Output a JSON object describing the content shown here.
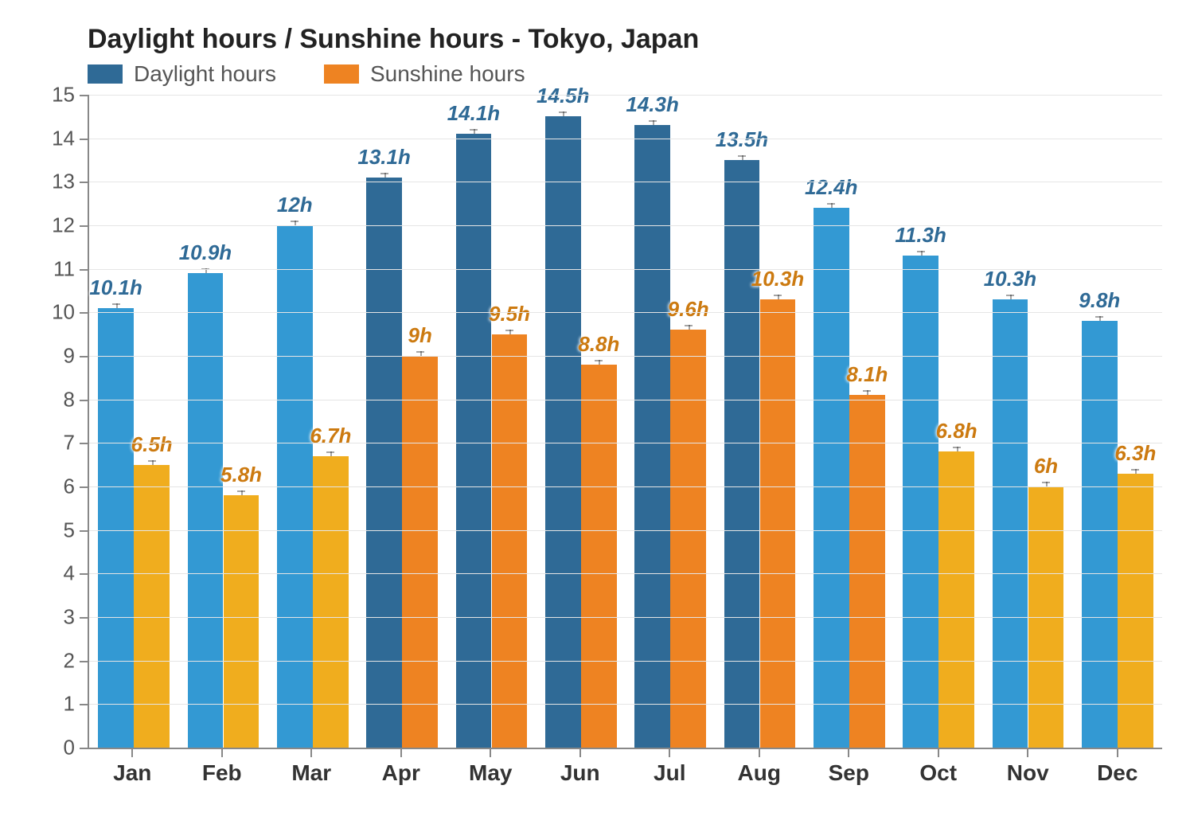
{
  "chart": {
    "type": "bar",
    "title": "Daylight hours / Sunshine hours - Tokyo, Japan",
    "title_fontsize": 34,
    "background_color": "#ffffff",
    "grid_color": "#e5e5e5",
    "axis_color": "#888888",
    "ylim": [
      0,
      15
    ],
    "ytick_step": 1,
    "label_fontsize": 26,
    "value_label_fontsize": 26,
    "xlabel_fontsize": 28,
    "categories": [
      "Jan",
      "Feb",
      "Mar",
      "Apr",
      "May",
      "Jun",
      "Jul",
      "Aug",
      "Sep",
      "Oct",
      "Nov",
      "Dec"
    ],
    "series": [
      {
        "name": "Daylight hours",
        "values": [
          10.1,
          10.9,
          12,
          13.1,
          14.1,
          14.5,
          14.3,
          13.5,
          12.4,
          11.3,
          10.3,
          9.8
        ],
        "labels": [
          "10.1h",
          "10.9h",
          "12h",
          "13.1h",
          "14.1h",
          "14.5h",
          "14.3h",
          "13.5h",
          "12.4h",
          "11.3h",
          "10.3h",
          "9.8h"
        ],
        "colors": [
          "#3399d3",
          "#3399d3",
          "#3399d3",
          "#2f6a96",
          "#2f6a96",
          "#2f6a96",
          "#2f6a96",
          "#2f6a96",
          "#3399d3",
          "#3399d3",
          "#3399d3",
          "#3399d3"
        ],
        "label_color": "#2f6a96",
        "legend_color": "#2f6a96"
      },
      {
        "name": "Sunshine hours",
        "values": [
          6.5,
          5.8,
          6.7,
          9,
          9.5,
          8.8,
          9.6,
          10.3,
          8.1,
          6.8,
          6,
          6.3
        ],
        "labels": [
          "6.5h",
          "5.8h",
          "6.7h",
          "9h",
          "9.5h",
          "8.8h",
          "9.6h",
          "10.3h",
          "8.1h",
          "6.8h",
          "6h",
          "6.3h"
        ],
        "colors": [
          "#f0ad1e",
          "#f0ad1e",
          "#f0ad1e",
          "#ee8322",
          "#ee8322",
          "#ee8322",
          "#ee8322",
          "#ee8322",
          "#ee8322",
          "#f0ad1e",
          "#f0ad1e",
          "#f0ad1e"
        ],
        "label_color": "#cc7a10",
        "legend_color": "#ee8322"
      }
    ],
    "group_width_pct": 7.0,
    "bar_gap_pct": 0.3,
    "group_inner_width_pct": 80
  }
}
